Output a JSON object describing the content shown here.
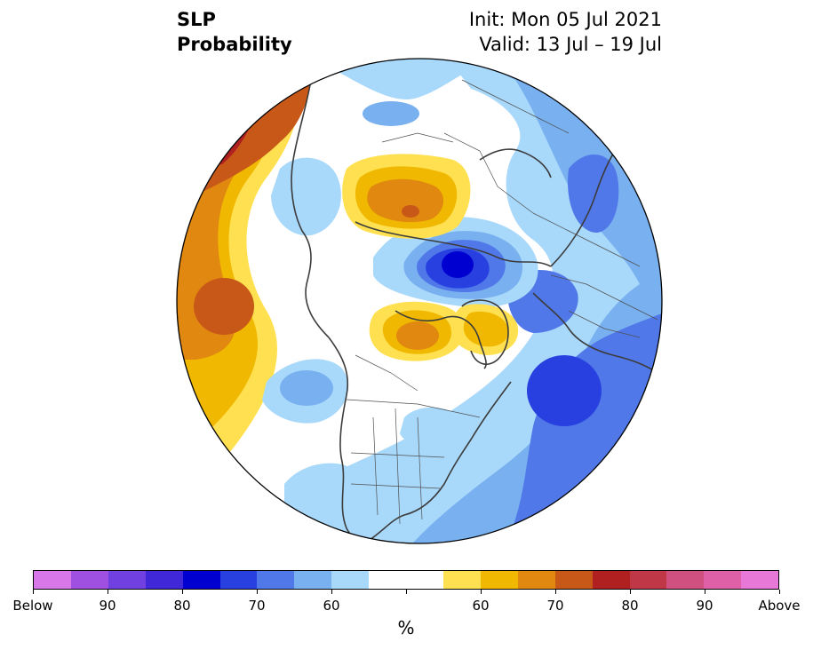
{
  "title": {
    "left_line1": "SLP",
    "left_line2": "Probability",
    "right_line1": "Init: Mon 05 Jul 2021",
    "right_line2": "Valid: 13 Jul – 19 Jul"
  },
  "colorbar": {
    "colors": [
      "#d878e8",
      "#a050e0",
      "#7040e0",
      "#4028d8",
      "#0000d0",
      "#2840e0",
      "#5078e8",
      "#78b0f0",
      "#a8d8fa",
      "#ffffff",
      "#ffffff",
      "#ffe050",
      "#f0b800",
      "#e08810",
      "#c85818",
      "#b02020",
      "#c03848",
      "#d05080",
      "#e060a8",
      "#e878d8"
    ],
    "tick_labels": [
      "Below",
      "90",
      "80",
      "70",
      "60",
      "",
      "60",
      "70",
      "80",
      "90",
      "Above"
    ],
    "unit": "%"
  },
  "map": {
    "projection": "north-polar-stereographic",
    "palette": {
      "blue_light": "#a8d8fa",
      "blue_mid": "#78b0f0",
      "blue": "#5078e8",
      "blue_dark": "#2840e0",
      "blue_deep": "#0000d0",
      "yellow": "#ffe050",
      "gold": "#f0b800",
      "orange": "#e08810",
      "orange_dark": "#c85818",
      "red": "#b02020",
      "coast": "#3c3c3c",
      "border": "#505050"
    }
  }
}
